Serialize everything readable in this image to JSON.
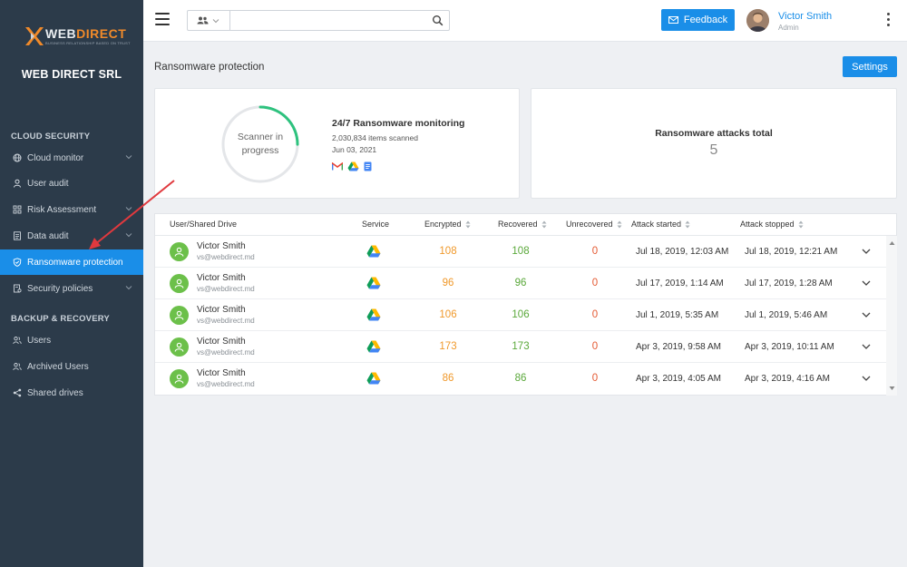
{
  "brand": {
    "logo_word_a": "WEB",
    "logo_word_b": "DIRECT",
    "logo_tagline": "BUSINESS RELATIONSHIP BASED ON TRUST",
    "company": "WEB DIRECT SRL",
    "accent": "#1a8ee8",
    "sidebar_bg": "#2c3b4a"
  },
  "sidebar": {
    "sections": [
      {
        "title": "CLOUD SECURITY"
      },
      {
        "title": "BACKUP & RECOVERY"
      }
    ],
    "items": [
      {
        "label": "Cloud monitor",
        "icon": "globe-icon",
        "expandable": true
      },
      {
        "label": "User audit",
        "icon": "user-icon",
        "expandable": false
      },
      {
        "label": "Risk Assessment",
        "icon": "grid-icon",
        "expandable": true
      },
      {
        "label": "Data audit",
        "icon": "document-icon",
        "expandable": true
      },
      {
        "label": "Ransomware protection",
        "icon": "shield-icon",
        "expandable": false,
        "active": true
      },
      {
        "label": "Security policies",
        "icon": "policy-icon",
        "expandable": true
      },
      {
        "label": "Users",
        "icon": "users-icon",
        "expandable": false
      },
      {
        "label": "Archived Users",
        "icon": "archived-users-icon",
        "expandable": false
      },
      {
        "label": "Shared drives",
        "icon": "share-icon",
        "expandable": false
      }
    ]
  },
  "topbar": {
    "search_placeholder": "",
    "feedback_label": "Feedback",
    "user_name": "Victor Smith",
    "user_role": "Admin"
  },
  "page": {
    "title": "Ransomware protection",
    "settings_label": "Settings"
  },
  "scanner": {
    "status_text": "Scanner in progress",
    "progress": 0.25,
    "monitoring_title": "24/7 Ransomware monitoring",
    "items_scanned": "2,030,834 items scanned",
    "date": "Jun 03, 2021",
    "services": [
      "gmail-icon",
      "google-drive-icon",
      "google-docs-icon"
    ]
  },
  "attacks": {
    "title": "Ransomware attacks total",
    "total": "5"
  },
  "table": {
    "columns": [
      "User/Shared Drive",
      "Service",
      "Encrypted",
      "Recovered",
      "Unrecovered",
      "Attack started",
      "Attack stopped"
    ],
    "rows": [
      {
        "name": "Victor Smith",
        "email": "vs@webdirect.md",
        "service": "google-drive-icon",
        "encrypted": "108",
        "recovered": "108",
        "unrecovered": "0",
        "started": "Jul 18, 2019, 12:03 AM",
        "stopped": "Jul 18, 2019, 12:21 AM"
      },
      {
        "name": "Victor Smith",
        "email": "vs@webdirect.md",
        "service": "google-drive-icon",
        "encrypted": "96",
        "recovered": "96",
        "unrecovered": "0",
        "started": "Jul 17, 2019, 1:14 AM",
        "stopped": "Jul 17, 2019, 1:28 AM"
      },
      {
        "name": "Victor Smith",
        "email": "vs@webdirect.md",
        "service": "google-drive-icon",
        "encrypted": "106",
        "recovered": "106",
        "unrecovered": "0",
        "started": "Jul 1, 2019, 5:35 AM",
        "stopped": "Jul 1, 2019, 5:46 AM"
      },
      {
        "name": "Victor Smith",
        "email": "vs@webdirect.md",
        "service": "google-drive-icon",
        "encrypted": "173",
        "recovered": "173",
        "unrecovered": "0",
        "started": "Apr 3, 2019, 9:58 AM",
        "stopped": "Apr 3, 2019, 10:11 AM"
      },
      {
        "name": "Victor Smith",
        "email": "vs@webdirect.md",
        "service": "google-drive-icon",
        "encrypted": "86",
        "recovered": "86",
        "unrecovered": "0",
        "started": "Apr 3, 2019, 4:05 AM",
        "stopped": "Apr 3, 2019, 4:16 AM"
      }
    ]
  }
}
